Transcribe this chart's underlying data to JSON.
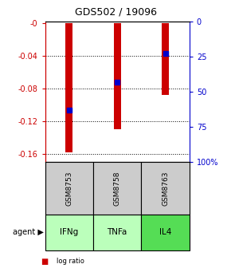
{
  "title": "GDS502 / 19096",
  "samples": [
    "GSM8753",
    "GSM8758",
    "GSM8763"
  ],
  "agents": [
    "IFNg",
    "TNFa",
    "IL4"
  ],
  "log_ratios": [
    -0.158,
    -0.13,
    -0.088
  ],
  "percentile_ranks": [
    63,
    43,
    23
  ],
  "ylim_left": [
    -0.17,
    0.002
  ],
  "yticks_left": [
    0,
    -0.04,
    -0.08,
    -0.12,
    -0.16
  ],
  "yticks_right_pct": [
    100,
    75,
    50,
    25,
    0
  ],
  "left_tick_labels": [
    "-0",
    "-0.04",
    "-0.08",
    "-0.12",
    "-0.16"
  ],
  "right_tick_labels": [
    "100%",
    "75",
    "50",
    "25",
    "0"
  ],
  "bar_color": "#cc0000",
  "marker_color": "#0000cc",
  "agent_colors": [
    "#bbffbb",
    "#bbffbb",
    "#55dd55"
  ],
  "sample_box_color": "#cccccc",
  "left_axis_color": "#cc0000",
  "right_axis_color": "#0000cc",
  "bar_width": 0.15
}
